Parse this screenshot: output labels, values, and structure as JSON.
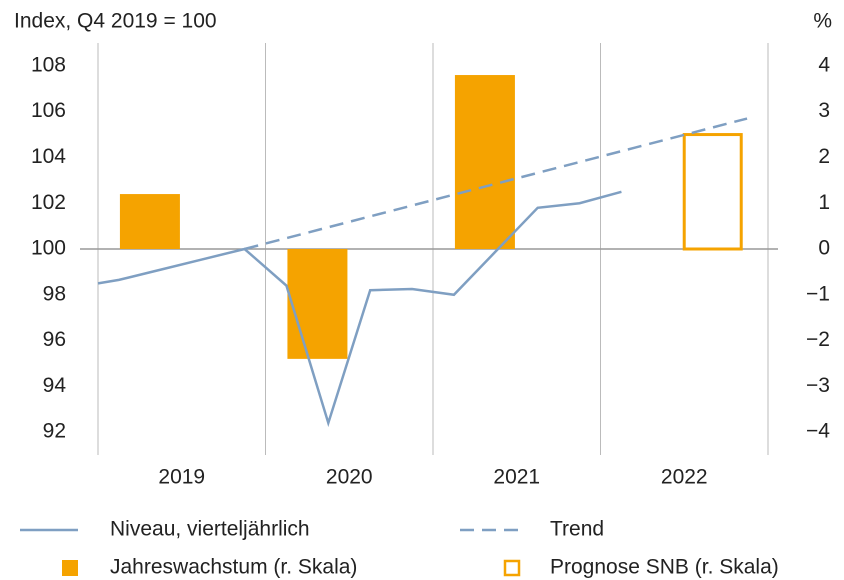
{
  "chart_data": {
    "type": "combo",
    "title": "Index, Q4 2019 = 100",
    "y2_label": "%",
    "categories": [
      "2019",
      "2020",
      "2021",
      "2022"
    ],
    "xlim": [
      2019,
      2023
    ],
    "ylim": [
      91,
      109
    ],
    "yticks": [
      92,
      94,
      96,
      98,
      100,
      102,
      104,
      106,
      108
    ],
    "y2lim": [
      -4.5,
      4.5
    ],
    "y2ticks": [
      {
        "value": -4,
        "label": "−4"
      },
      {
        "value": -3,
        "label": "−3"
      },
      {
        "value": -2,
        "label": "−2"
      },
      {
        "value": -1,
        "label": "−1"
      },
      0,
      1,
      2,
      3,
      4
    ],
    "series": [
      {
        "name": "Niveau, vierteljährlich",
        "type": "line",
        "color": "#7f9fc2",
        "x": [
          2019.0,
          2019.125,
          2019.375,
          2019.625,
          2019.875,
          2020.125,
          2020.375,
          2020.625,
          2020.875,
          2021.125,
          2021.375,
          2021.625,
          2021.875,
          2022.125
        ],
        "values": [
          98.5,
          98.65,
          99.1,
          99.55,
          100,
          98.4,
          92.4,
          98.2,
          98.25,
          98.0,
          99.9,
          101.8,
          102.0,
          102.5
        ]
      },
      {
        "name": "Trend",
        "type": "line",
        "style": "dashed",
        "color": "#7f9fc2",
        "x": [
          2019.875,
          2022.875
        ],
        "values": [
          100,
          105.7
        ]
      },
      {
        "name": "Jahreswachstum (r. Skala)",
        "type": "bar",
        "axis": "y2",
        "color": "#f5a300",
        "x": [
          2019.31,
          2020.31,
          2021.31
        ],
        "values": [
          1.2,
          -2.4,
          3.8
        ]
      },
      {
        "name": "Prognose SNB (r. Skala)",
        "type": "bar",
        "axis": "y2",
        "fill": "hollow",
        "color": "#f5a300",
        "x": [
          2022.67
        ],
        "values": [
          2.5
        ]
      }
    ]
  }
}
